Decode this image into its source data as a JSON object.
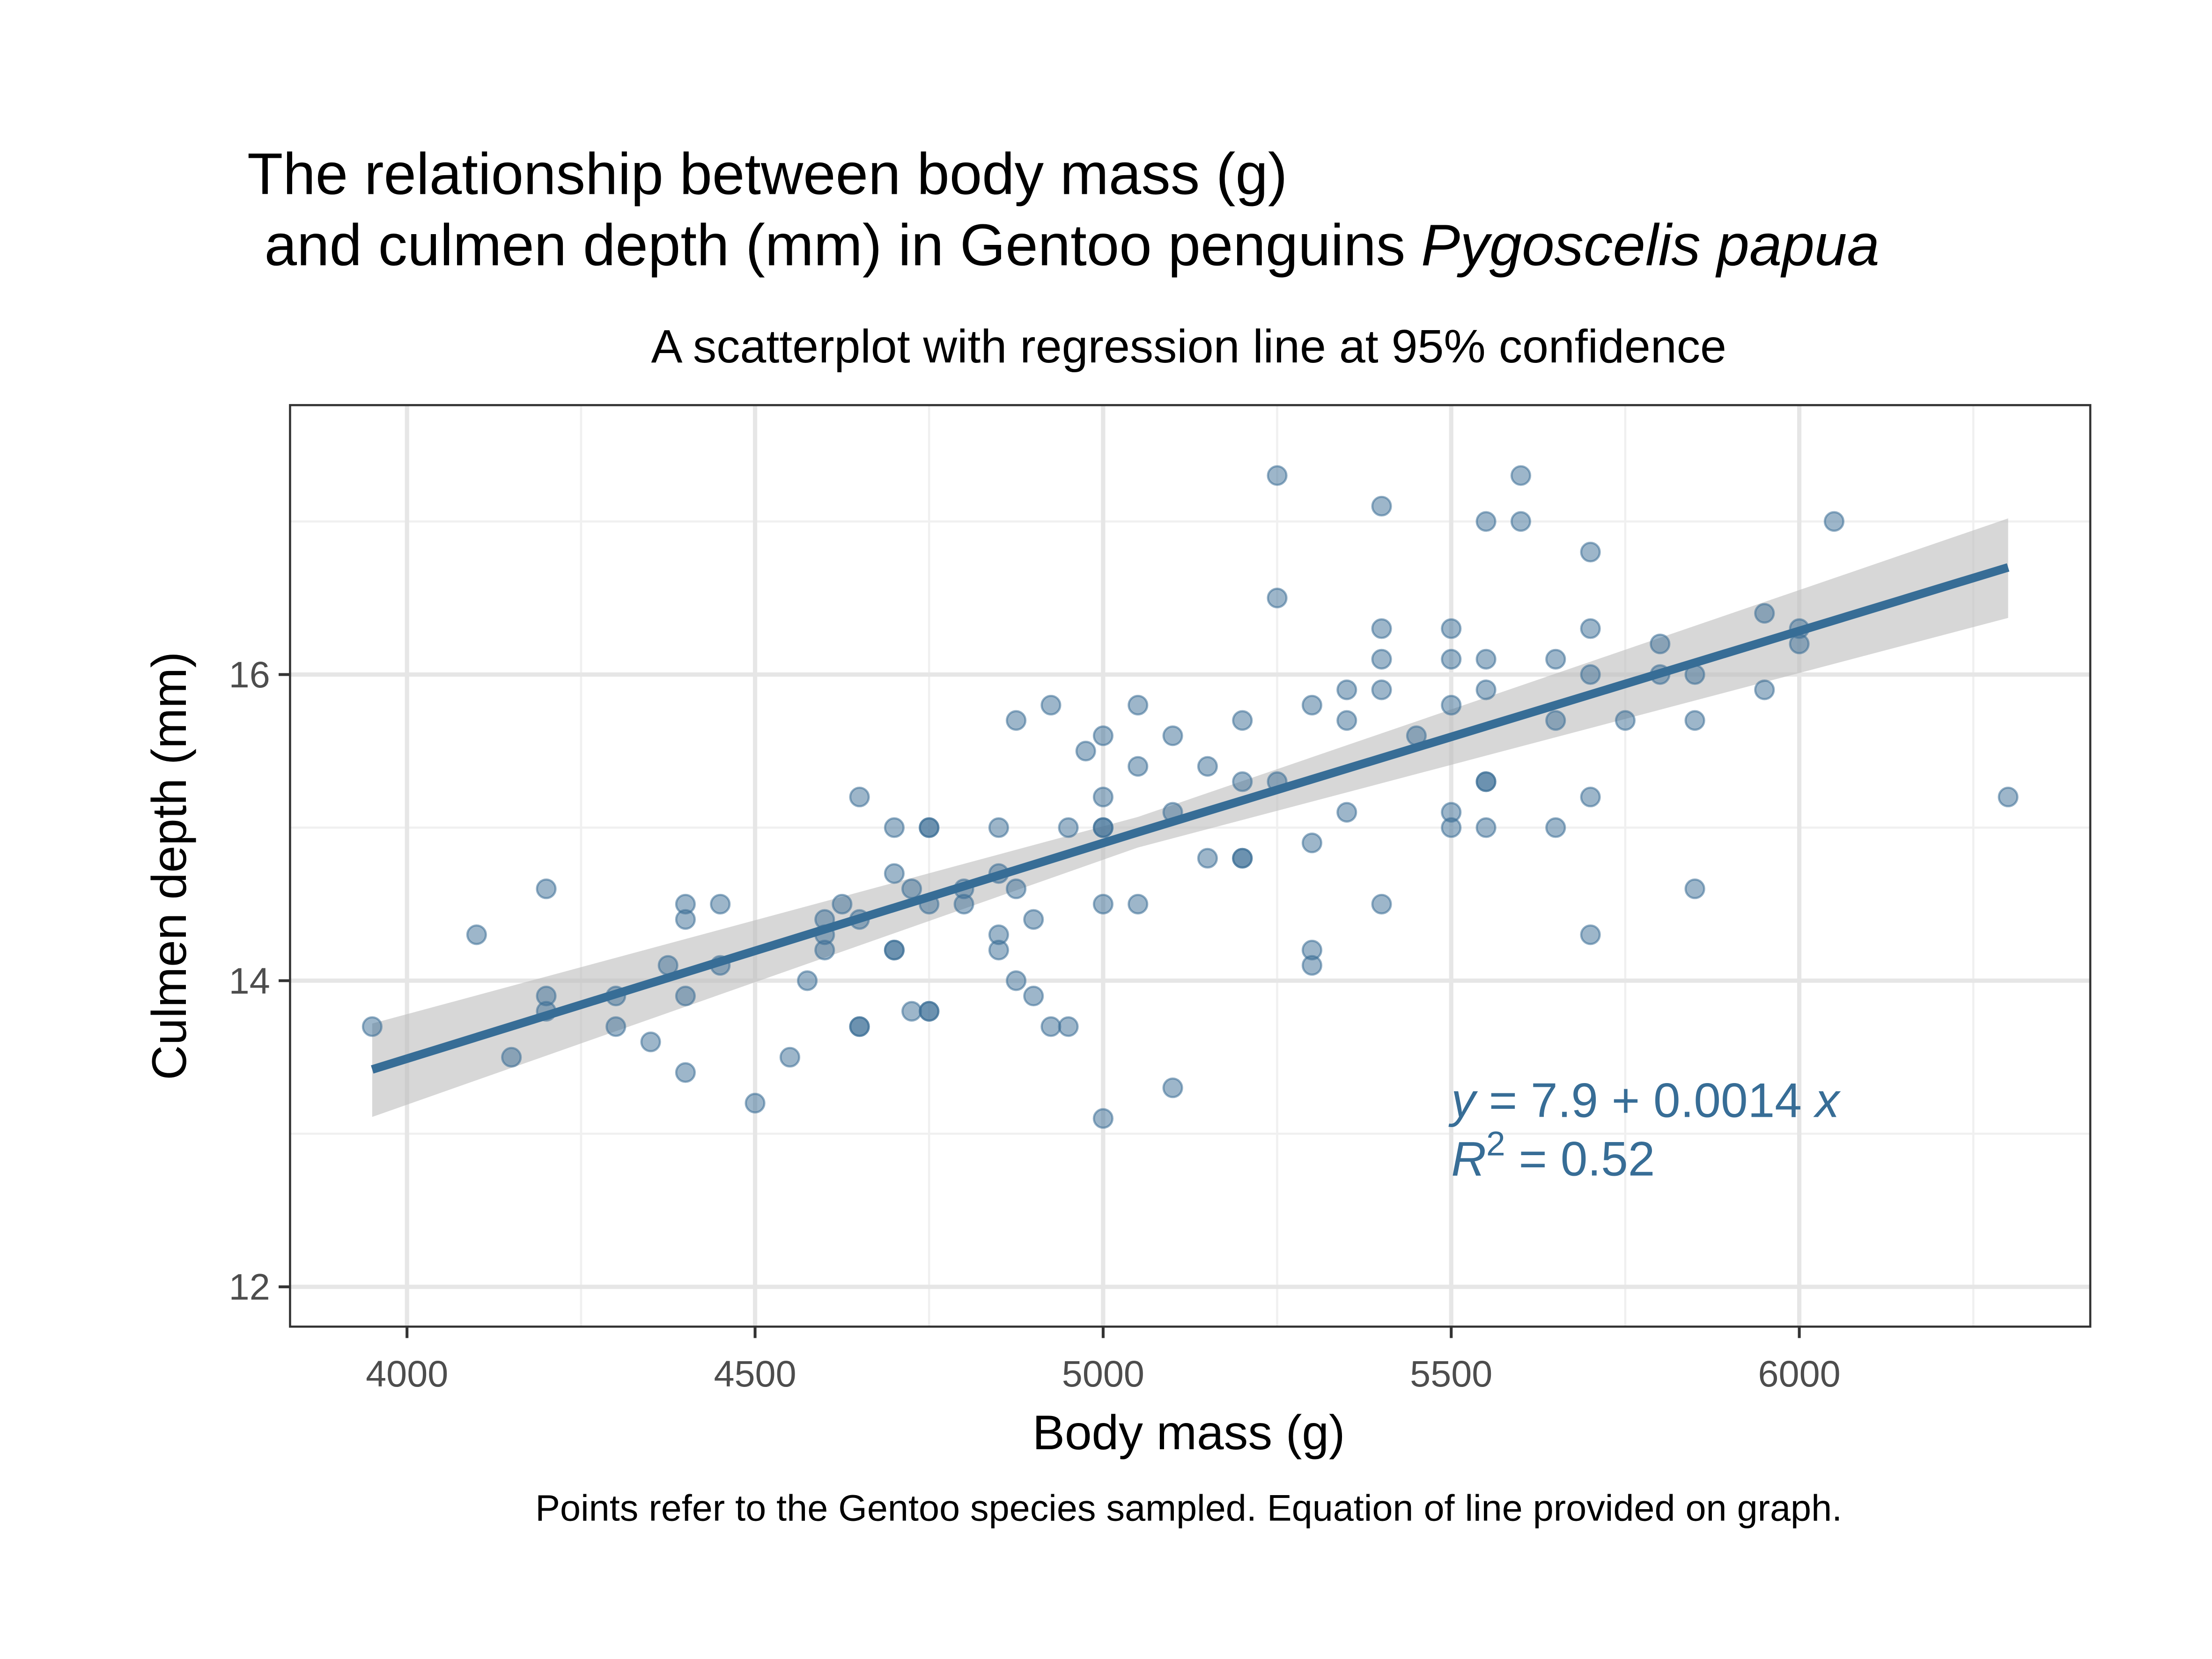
{
  "chart_data": {
    "type": "scatter",
    "title": [
      "The relationship between body mass (g)",
      "and culmen depth (mm) in Gentoo penguins",
      "Pygoscelis papua"
    ],
    "subtitle": "A scatterplot with regression line at 95% confidence",
    "x_label": "Body mass (g)",
    "y_label": "Culmen depth (mm)",
    "caption": "Points refer to the Gentoo species sampled. Equation of line provided on graph.",
    "annotation": {
      "equation": [
        "y",
        " = 7.9 + 0.0014 ",
        "x"
      ],
      "r2": [
        "R",
        "2",
        " = 0.52"
      ]
    },
    "color": "#3b6e96",
    "x": [
      3950,
      4100,
      4150,
      4200,
      4200,
      4200,
      4300,
      4300,
      4350,
      4375,
      4400,
      4400,
      4400,
      4400,
      4450,
      4450,
      4500,
      4550,
      4575,
      4600,
      4600,
      4600,
      4625,
      4650,
      4650,
      4650,
      4650,
      4700,
      4700,
      4700,
      4700,
      4725,
      4725,
      4750,
      4750,
      4750,
      4750,
      4750,
      4800,
      4800,
      4850,
      4850,
      4850,
      4850,
      4875,
      4875,
      4875,
      4900,
      4900,
      4925,
      4925,
      4950,
      4950,
      4975,
      5000,
      5000,
      5000,
      5000,
      5000,
      5000,
      5050,
      5050,
      5050,
      5100,
      5100,
      5100,
      5150,
      5150,
      5200,
      5200,
      5200,
      5200,
      5250,
      5250,
      5250,
      5300,
      5300,
      5300,
      5300,
      5350,
      5350,
      5350,
      5400,
      5400,
      5400,
      5400,
      5400,
      5450,
      5500,
      5500,
      5500,
      5500,
      5500,
      5550,
      5550,
      5550,
      5550,
      5550,
      5550,
      5600,
      5600,
      5650,
      5650,
      5650,
      5700,
      5700,
      5700,
      5700,
      5700,
      5750,
      5800,
      5800,
      5850,
      5850,
      5850,
      5950,
      5950,
      6000,
      6000,
      6050,
      6300
    ],
    "values": [
      13.7,
      14.3,
      13.5,
      14.6,
      13.9,
      13.8,
      13.9,
      13.7,
      13.6,
      14.1,
      14.5,
      14.4,
      13.9,
      13.4,
      14.5,
      14.1,
      13.2,
      13.5,
      14.0,
      14.4,
      14.3,
      14.2,
      14.5,
      15.2,
      14.4,
      13.7,
      13.7,
      15.0,
      14.7,
      14.2,
      14.2,
      14.6,
      13.8,
      15.0,
      15.0,
      14.5,
      13.8,
      13.8,
      14.6,
      14.5,
      15.0,
      14.7,
      14.3,
      14.2,
      15.7,
      14.6,
      14.0,
      14.4,
      13.9,
      15.8,
      13.7,
      15.0,
      13.7,
      15.5,
      15.6,
      15.2,
      15.0,
      15.0,
      14.5,
      13.1,
      15.8,
      15.4,
      14.5,
      15.6,
      15.1,
      13.3,
      15.4,
      14.8,
      15.7,
      15.3,
      14.8,
      14.8,
      17.3,
      16.5,
      15.3,
      15.8,
      14.9,
      14.2,
      14.1,
      15.9,
      15.7,
      15.1,
      17.1,
      16.3,
      16.1,
      15.9,
      14.5,
      15.6,
      16.3,
      16.1,
      15.8,
      15.1,
      15.0,
      17.0,
      16.1,
      15.9,
      15.3,
      15.3,
      15.0,
      17.3,
      17.0,
      16.1,
      15.7,
      15.0,
      16.8,
      16.3,
      16.0,
      15.2,
      14.3,
      15.7,
      16.2,
      16.0,
      16.0,
      15.7,
      14.6,
      16.4,
      15.9,
      16.3,
      16.2,
      17.0,
      15.2
    ],
    "fit": {
      "x": [
        3950,
        5050,
        6300
      ],
      "y": [
        13.42,
        14.97,
        16.7
      ],
      "lower": [
        13.11,
        14.87,
        16.37
      ],
      "upper": [
        13.72,
        15.07,
        17.02
      ],
      "color": "#376d96",
      "band_color": "#bdbdbd"
    },
    "xlim": [
      3832,
      6418
    ],
    "ylim": [
      11.74,
      17.76
    ],
    "xticks": [
      4000,
      4500,
      5000,
      5500,
      6000
    ],
    "yticks": [
      12,
      14,
      16
    ],
    "x_minor_ticks": [
      4250,
      4750,
      5250,
      5750,
      6250
    ],
    "y_minor_ticks": [
      13,
      15,
      17
    ],
    "grid": true
  }
}
